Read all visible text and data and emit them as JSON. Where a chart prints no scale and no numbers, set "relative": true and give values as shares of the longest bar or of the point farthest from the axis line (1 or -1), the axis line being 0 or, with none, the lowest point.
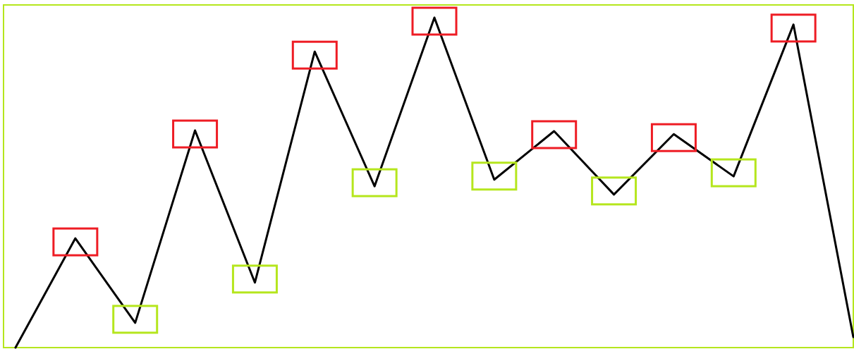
{
  "chart_data": {
    "type": "line",
    "relative": true,
    "categories": [
      null,
      null,
      null,
      null,
      null,
      null,
      null,
      null,
      null,
      null,
      null,
      null,
      null,
      null,
      null
    ],
    "series": [
      {
        "color": "#000000",
        "values": [
          0,
          0.331,
          0.075,
          0.658,
          0.197,
          0.897,
          0.489,
          1,
          0.509,
          0.656,
          0.464,
          0.647,
          0.519,
          0.979,
          0.032
        ]
      }
    ]
  }
}
